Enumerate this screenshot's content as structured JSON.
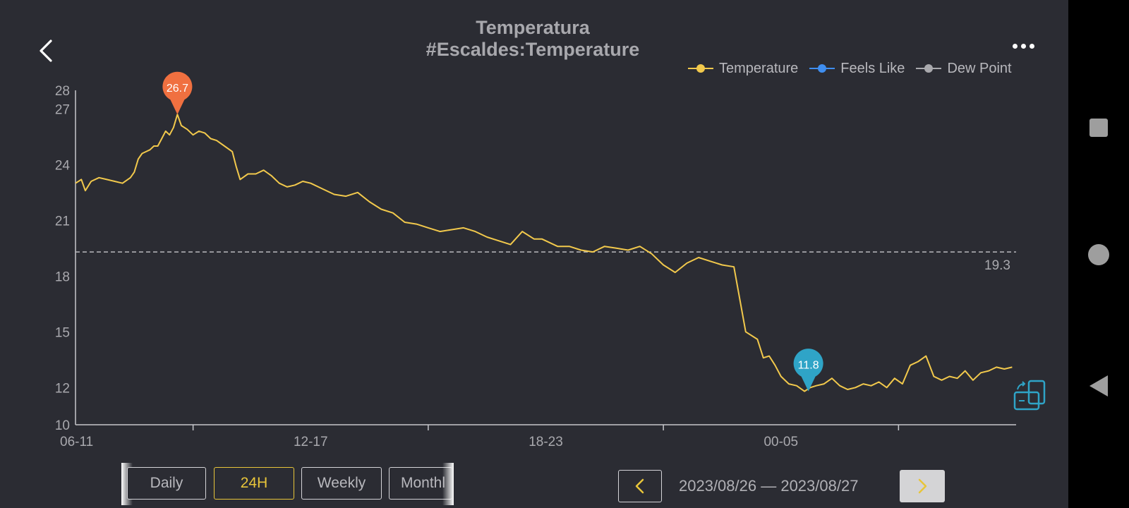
{
  "header": {
    "title_line1": "Temperatura",
    "title_line2": "#Escaldes:Temperature"
  },
  "legend": [
    {
      "label": "Temperature",
      "color": "#f2c94c"
    },
    {
      "label": "Feels Like",
      "color": "#3f8ef0"
    },
    {
      "label": "Dew Point",
      "color": "#a9a9ad"
    }
  ],
  "periods": [
    {
      "label": "Daily",
      "active": false
    },
    {
      "label": "24H",
      "active": true
    },
    {
      "label": "Weekly",
      "active": false
    },
    {
      "label": "Monthl",
      "active": false
    }
  ],
  "date_range": "2023/08/26 — 2023/08/27",
  "colors": {
    "background": "#2b2c33",
    "temperature": "#f2c94c",
    "feels_like": "#3f8ef0",
    "max_pin": "#f07040",
    "min_pin": "#2fa4c7",
    "accent": "#e8c53a"
  },
  "chart_data": {
    "type": "line",
    "ylim": [
      10,
      28
    ],
    "yticks": [
      10,
      12,
      15,
      18,
      21,
      24,
      27,
      28
    ],
    "xlim": [
      0,
      24
    ],
    "xtick_labels": [
      "06-11",
      "12-17",
      "18-23",
      "00-05"
    ],
    "xtick_positions": [
      0,
      6,
      12,
      18
    ],
    "minor_tick_positions": [
      3,
      9,
      15,
      21
    ],
    "average": 19.3,
    "max": {
      "label": "26.7",
      "x": 2.6,
      "value": 26.7
    },
    "min": {
      "label": "11.8",
      "x": 18.7,
      "value": 11.8
    },
    "series": [
      {
        "name": "Temperature",
        "x": [
          0,
          0.15,
          0.25,
          0.4,
          0.6,
          0.8,
          1.0,
          1.2,
          1.4,
          1.5,
          1.6,
          1.7,
          1.8,
          1.9,
          2.0,
          2.1,
          2.2,
          2.3,
          2.4,
          2.5,
          2.6,
          2.7,
          2.85,
          3.0,
          3.15,
          3.3,
          3.45,
          3.6,
          3.8,
          4.0,
          4.1,
          4.2,
          4.4,
          4.6,
          4.8,
          5.0,
          5.2,
          5.4,
          5.6,
          5.8,
          6.0,
          6.3,
          6.6,
          6.9,
          7.2,
          7.5,
          7.8,
          8.1,
          8.4,
          8.7,
          9.0,
          9.3,
          9.6,
          9.9,
          10.2,
          10.5,
          10.8,
          11.1,
          11.4,
          11.7,
          11.9,
          12.0,
          12.3,
          12.6,
          12.9,
          13.2,
          13.5,
          13.8,
          14.1,
          14.4,
          14.7,
          15.0,
          15.3,
          15.6,
          15.9,
          16.2,
          16.5,
          16.8,
          17.1,
          17.4,
          17.55,
          17.7,
          17.85,
          18.0,
          18.2,
          18.4,
          18.6,
          18.75,
          18.9,
          19.1,
          19.3,
          19.5,
          19.7,
          19.9,
          20.1,
          20.3,
          20.5,
          20.7,
          20.9,
          21.1,
          21.3,
          21.5,
          21.7,
          21.9,
          22.1,
          22.3,
          22.5,
          22.7,
          22.9,
          23.1,
          23.3,
          23.5,
          23.7,
          23.9
        ],
        "values": [
          23.0,
          23.2,
          22.6,
          23.1,
          23.3,
          23.2,
          23.1,
          23.0,
          23.3,
          23.6,
          24.3,
          24.6,
          24.7,
          24.8,
          25.0,
          25.0,
          25.4,
          25.8,
          25.6,
          26.0,
          26.7,
          26.1,
          25.9,
          25.6,
          25.8,
          25.7,
          25.4,
          25.3,
          25.0,
          24.7,
          23.9,
          23.2,
          23.5,
          23.5,
          23.7,
          23.4,
          23.0,
          22.8,
          22.9,
          23.1,
          23.0,
          22.7,
          22.4,
          22.3,
          22.5,
          22.0,
          21.6,
          21.4,
          20.9,
          20.8,
          20.6,
          20.4,
          20.5,
          20.6,
          20.4,
          20.1,
          19.9,
          19.7,
          20.4,
          20.0,
          20.0,
          19.9,
          19.6,
          19.6,
          19.4,
          19.3,
          19.6,
          19.5,
          19.4,
          19.6,
          19.2,
          18.6,
          18.2,
          18.7,
          19.0,
          18.8,
          18.6,
          18.5,
          15.0,
          14.6,
          13.6,
          13.7,
          13.2,
          12.6,
          12.2,
          12.1,
          11.8,
          12.0,
          12.1,
          12.2,
          12.5,
          12.1,
          11.9,
          12.0,
          12.2,
          12.1,
          12.3,
          12.0,
          12.5,
          12.2,
          13.2,
          13.4,
          13.7,
          12.6,
          12.4,
          12.6,
          12.5,
          12.9,
          12.4,
          12.8,
          12.9,
          13.1,
          13.0,
          13.1
        ]
      }
    ]
  }
}
